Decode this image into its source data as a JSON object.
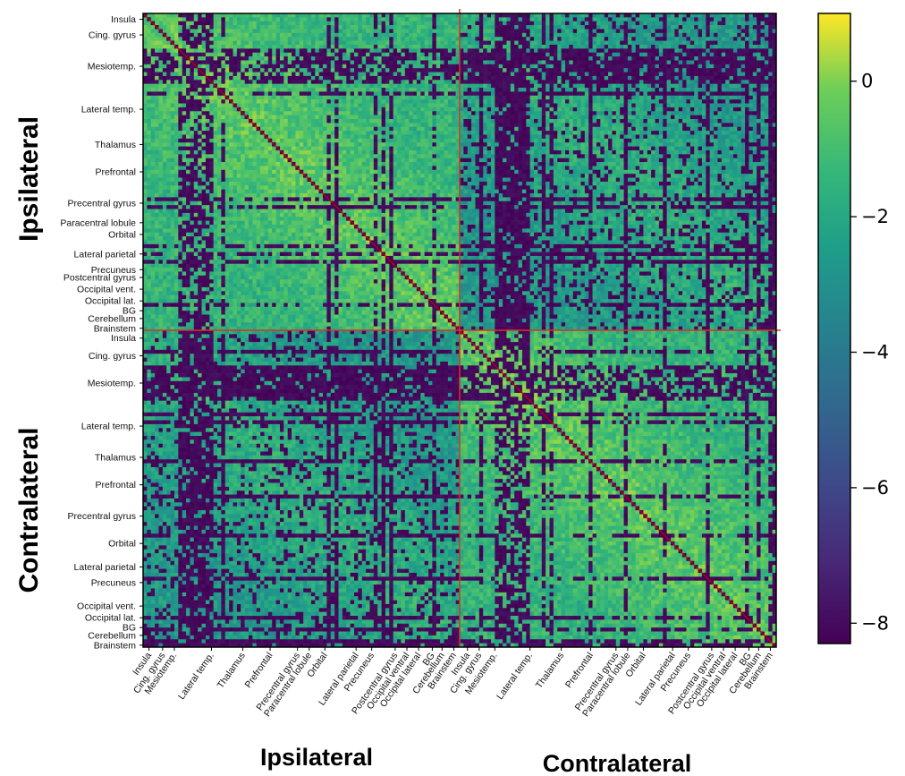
{
  "chart_data": {
    "type": "heatmap",
    "matrix_size": 162,
    "groups": [
      {
        "name": "Ipsilateral",
        "start": 0,
        "end": 81
      },
      {
        "name": "Contralateral",
        "start": 81,
        "end": 162
      }
    ],
    "y_axis_group_labels": [
      "Ipsilateral",
      "Contralateral"
    ],
    "x_axis_group_labels": [
      "Ipsilateral",
      "Contralateral"
    ],
    "y_tick_labels": [
      {
        "label": "Insula",
        "index": 1
      },
      {
        "label": "Cing. gyrus",
        "index": 5
      },
      {
        "label": "Mesiotemp.",
        "index": 13
      },
      {
        "label": "Lateral temp.",
        "index": 24
      },
      {
        "label": "Thalamus",
        "index": 33
      },
      {
        "label": "Prefrontal",
        "index": 40
      },
      {
        "label": "Precentral gyrus",
        "index": 48
      },
      {
        "label": "Paracentral lobule",
        "index": 53
      },
      {
        "label": "Orbital",
        "index": 56
      },
      {
        "label": "Lateral parietal",
        "index": 61
      },
      {
        "label": "Precuneus",
        "index": 65
      },
      {
        "label": "Postcentral gyrus",
        "index": 67
      },
      {
        "label": "Occipital vent.",
        "index": 70
      },
      {
        "label": "Occipital lat.",
        "index": 73
      },
      {
        "label": "BG",
        "index": 75.5
      },
      {
        "label": "Cerebellum",
        "index": 77.5
      },
      {
        "label": "Brainstem",
        "index": 80
      },
      {
        "label": "Insula",
        "index": 82.5
      },
      {
        "label": "Cing. gyrus",
        "index": 87
      },
      {
        "label": "Mesiotemp.",
        "index": 94
      },
      {
        "label": "Lateral temp.",
        "index": 105
      },
      {
        "label": "Thalamus",
        "index": 113
      },
      {
        "label": "Prefrontal",
        "index": 120
      },
      {
        "label": "Precentral gyrus",
        "index": 128
      },
      {
        "label": "Orbital",
        "index": 135
      },
      {
        "label": "Lateral parietal",
        "index": 141
      },
      {
        "label": "Precuneus",
        "index": 145
      },
      {
        "label": "Occipital vent.",
        "index": 151
      },
      {
        "label": "Occipital lat.",
        "index": 154
      },
      {
        "label": "BG",
        "index": 156.5
      },
      {
        "label": "Cerebellum",
        "index": 158.5
      },
      {
        "label": "Brainstem",
        "index": 161
      }
    ],
    "x_tick_labels": [
      {
        "label": "Insula",
        "index": 1
      },
      {
        "label": "Cing. gyrus",
        "index": 4.5
      },
      {
        "label": "Mesiotemp.",
        "index": 7.5
      },
      {
        "label": "Lateral temp.",
        "index": 17
      },
      {
        "label": "Thalamus",
        "index": 25
      },
      {
        "label": "Prefrontal",
        "index": 32
      },
      {
        "label": "Precentral gyrus",
        "index": 39
      },
      {
        "label": "Paracentral lobule",
        "index": 42
      },
      {
        "label": "Orbital",
        "index": 46
      },
      {
        "label": "Lateral parietal",
        "index": 54
      },
      {
        "label": "Precuneus",
        "index": 58
      },
      {
        "label": "Postcentral gyrus",
        "index": 64
      },
      {
        "label": "Occipital ventral",
        "index": 67
      },
      {
        "label": "Occipital lateral",
        "index": 70
      },
      {
        "label": "BG",
        "index": 73.5
      },
      {
        "label": "Cerebellum",
        "index": 76
      },
      {
        "label": "Brainstem",
        "index": 79
      },
      {
        "label": "Insula",
        "index": 82.5
      },
      {
        "label": "Cing. gyrus",
        "index": 85.5
      },
      {
        "label": "Mesiotemp.",
        "index": 89.5
      },
      {
        "label": "Lateral temp.",
        "index": 98.5
      },
      {
        "label": "Thalamus",
        "index": 106.5
      },
      {
        "label": "Prefrontal",
        "index": 114
      },
      {
        "label": "Precentral gyrus",
        "index": 120.5
      },
      {
        "label": "Paracentral lobule",
        "index": 123.5
      },
      {
        "label": "Orbital",
        "index": 127.5
      },
      {
        "label": "Lateral parietal",
        "index": 135
      },
      {
        "label": "Precuneus",
        "index": 139
      },
      {
        "label": "Postcentral gyrus",
        "index": 145
      },
      {
        "label": "Occipital ventral",
        "index": 148
      },
      {
        "label": "Occipital lateral",
        "index": 151
      },
      {
        "label": "BG",
        "index": 154.5
      },
      {
        "label": "Cerebellum",
        "index": 157
      },
      {
        "label": "Brainstem",
        "index": 160
      }
    ],
    "colorbar": {
      "colormap": "viridis",
      "range": [
        -8.3,
        1.0
      ],
      "ticks": [
        0,
        -2,
        -4,
        -6,
        -8
      ],
      "tick_labels": [
        "0",
        "−2",
        "−4",
        "−6",
        "−8"
      ]
    },
    "dark_bands": [
      {
        "rows_or_cols": [
          9,
          18
        ],
        "region": "Mesiotemp. ipsilateral"
      },
      {
        "rows_or_cols": [
          90,
          99
        ],
        "region": "Mesiotemp. contralateral"
      }
    ],
    "diagonal_color": "#cc0000",
    "divider_color": "#e03020"
  }
}
